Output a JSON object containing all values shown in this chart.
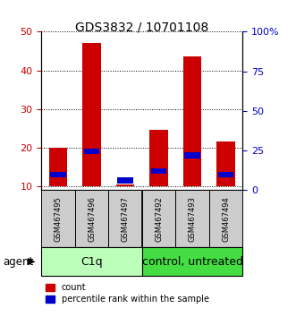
{
  "title": "GDS3832 / 10701108",
  "samples": [
    "GSM467495",
    "GSM467496",
    "GSM467497",
    "GSM467492",
    "GSM467493",
    "GSM467494"
  ],
  "count_values": [
    20,
    47,
    10.5,
    24.5,
    43.5,
    21.5
  ],
  "percentile_values": [
    13,
    19,
    11.5,
    14,
    18,
    13
  ],
  "percentile_heights": [
    1.5,
    1.5,
    1.5,
    1.5,
    1.5,
    1.5
  ],
  "ylim_left": [
    9,
    50
  ],
  "ylim_right": [
    0,
    100
  ],
  "yticks_left": [
    10,
    20,
    30,
    40,
    50
  ],
  "yticks_right": [
    0,
    25,
    50,
    75,
    100
  ],
  "ytick_labels_right": [
    "0",
    "25",
    "50",
    "75",
    "100%"
  ],
  "bar_width": 0.55,
  "red_color": "#CC0000",
  "blue_color": "#0000CC",
  "bar_bottom": 10,
  "group1_label": "C1q",
  "group1_color": "#BBFFBB",
  "group2_label": "control, untreated",
  "group2_color": "#44DD44",
  "sample_box_color": "#CCCCCC",
  "agent_label": "agent",
  "legend_count": "count",
  "legend_percentile": "percentile rank within the sample",
  "title_fontsize": 10,
  "tick_fontsize": 8,
  "sample_fontsize": 6,
  "group_fontsize": 9
}
